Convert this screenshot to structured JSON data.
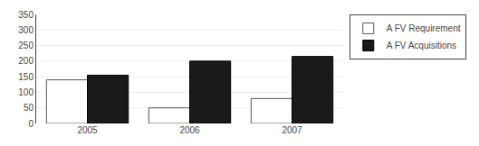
{
  "chart_data": {
    "type": "bar",
    "categories": [
      "2005",
      "2006",
      "2007"
    ],
    "series": [
      {
        "name": "A FV Requirement",
        "color": "#ffffff",
        "values": [
          140,
          50,
          80
        ]
      },
      {
        "name": "A FV Acquisitions",
        "color": "#1a1a1a",
        "values": [
          155,
          200,
          215
        ]
      }
    ],
    "ylim": [
      0,
      350
    ],
    "yticks": [
      0,
      50,
      100,
      150,
      200,
      250,
      300,
      350
    ],
    "grid": true,
    "legend": "right"
  }
}
